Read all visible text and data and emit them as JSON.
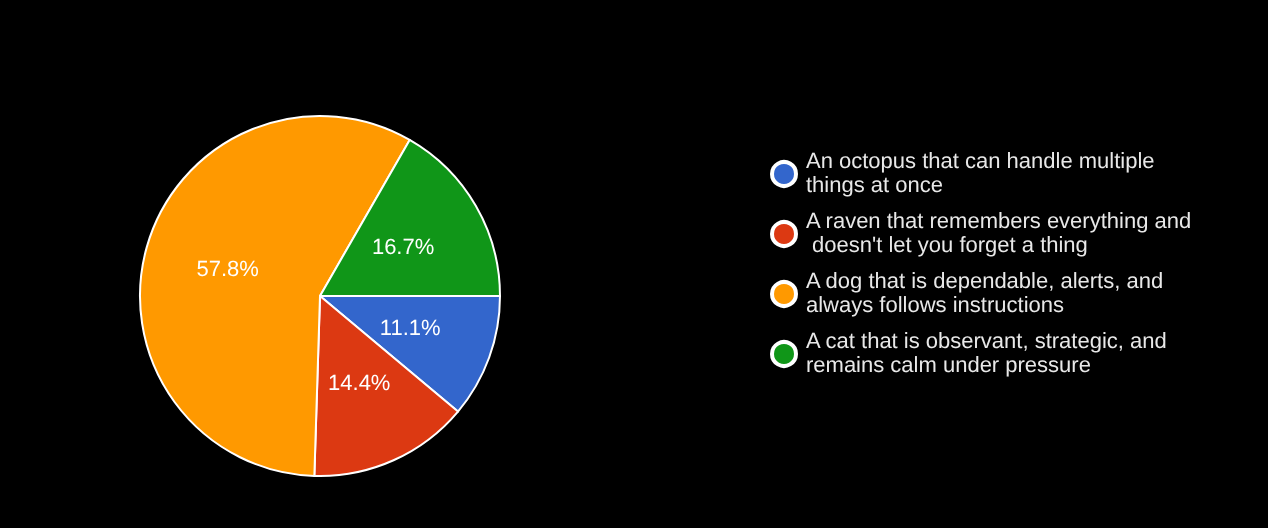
{
  "chart_data": {
    "type": "pie",
    "categories": [
      "An octopus that can handle multiple things at once",
      "A raven that remembers everything and doesn't let you forget a thing",
      "A dog that is dependable, alerts, and always follows instructions",
      "A cat that is observant, strategic, and remains calm under pressure"
    ],
    "values": [
      11.1,
      14.4,
      57.8,
      16.7
    ],
    "colors": [
      "#3366cc",
      "#dc3912",
      "#ff9900",
      "#109618"
    ],
    "value_labels": [
      "11.1%",
      "14.4%",
      "57.8%",
      "16.7%"
    ],
    "legend": "right"
  }
}
